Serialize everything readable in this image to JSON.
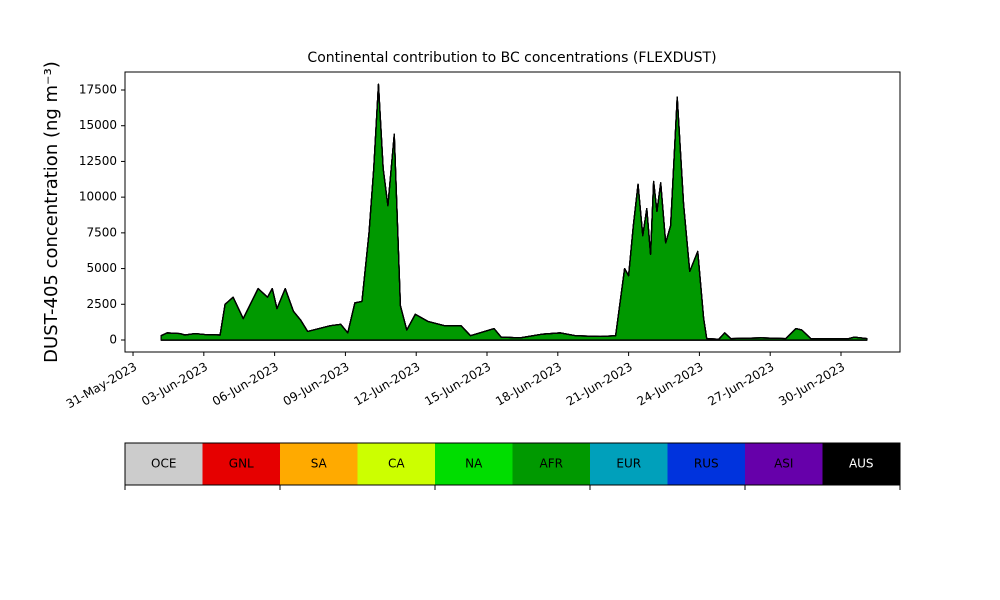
{
  "chart_data": {
    "type": "stackedarea",
    "title": "Continental contribution to BC concentrations (FLEXDUST)",
    "y_label": "DUST-405 concentration (ng m⁻³)",
    "x": [
      1.19,
      1.44,
      1.99,
      2.2,
      2.63,
      3.05,
      3.69,
      3.9,
      4.24,
      4.67,
      5.3,
      5.7,
      5.9,
      6.1,
      6.45,
      6.8,
      7.1,
      7.4,
      8.36,
      8.8,
      9.1,
      9.4,
      9.7,
      10.0,
      10.2,
      10.4,
      10.6,
      10.8,
      11.07,
      11.33,
      11.6,
      11.96,
      12.5,
      13.2,
      13.9,
      14.3,
      15.3,
      15.6,
      16.4,
      17.3,
      18.1,
      18.75,
      19.8,
      20.45,
      20.83,
      21.0,
      21.2,
      21.4,
      21.6,
      21.77,
      21.93,
      22.06,
      22.2,
      22.36,
      22.57,
      22.78,
      23.06,
      23.33,
      23.59,
      23.93,
      24.18,
      24.31,
      24.82,
      25.07,
      25.33,
      26.6,
      27.66,
      28.09,
      28.34,
      28.72,
      30.33,
      30.55,
      31.1
    ],
    "series": [
      {
        "name": "OCE",
        "color": "#cccccc",
        "values": [
          0,
          0,
          0,
          0,
          0,
          0,
          0,
          0,
          0,
          0,
          0,
          0,
          0,
          0,
          0,
          0,
          0,
          0,
          0,
          0,
          0,
          0,
          0,
          0,
          0,
          0,
          0,
          0,
          0,
          0,
          0,
          0,
          0,
          0,
          0,
          0,
          0,
          0,
          0,
          0,
          0,
          0,
          0,
          0,
          0,
          0,
          0,
          0,
          0,
          0,
          0,
          0,
          0,
          0,
          0,
          0,
          0,
          0,
          0,
          0,
          0,
          0,
          0,
          0,
          0,
          0,
          0,
          0,
          0,
          0,
          0,
          0,
          0
        ]
      },
      {
        "name": "GNL",
        "color": "#e60000",
        "values": [
          0,
          0,
          0,
          0,
          0,
          0,
          0,
          0,
          0,
          0,
          0,
          0,
          0,
          0,
          0,
          0,
          0,
          0,
          0,
          0,
          0,
          0,
          0,
          0,
          0,
          0,
          0,
          0,
          0,
          0,
          0,
          0,
          0,
          0,
          0,
          0,
          0,
          0,
          0,
          0,
          0,
          0,
          0,
          0,
          0,
          0,
          0,
          0,
          0,
          0,
          0,
          0,
          0,
          0,
          0,
          0,
          0,
          0,
          0,
          0,
          0,
          0,
          0,
          0,
          0,
          0,
          0,
          0,
          0,
          0,
          0,
          0,
          0
        ]
      },
      {
        "name": "SA",
        "color": "#ffaa00",
        "values": [
          0,
          0,
          0,
          0,
          0,
          0,
          0,
          0,
          0,
          0,
          0,
          0,
          0,
          0,
          0,
          0,
          0,
          0,
          0,
          0,
          0,
          0,
          0,
          0,
          0,
          0,
          0,
          0,
          0,
          0,
          0,
          0,
          0,
          0,
          0,
          0,
          0,
          0,
          0,
          0,
          0,
          0,
          0,
          0,
          0,
          0,
          0,
          0,
          0,
          0,
          0,
          0,
          0,
          0,
          0,
          0,
          0,
          0,
          0,
          0,
          0,
          0,
          0,
          0,
          0,
          0,
          0,
          0,
          0,
          0,
          0,
          0,
          0
        ]
      },
      {
        "name": "CA",
        "color": "#ccff00",
        "values": [
          0,
          0,
          0,
          0,
          0,
          0,
          0,
          0,
          0,
          0,
          0,
          0,
          0,
          0,
          0,
          0,
          0,
          0,
          0,
          0,
          0,
          0,
          0,
          0,
          0,
          0,
          0,
          0,
          0,
          0,
          0,
          0,
          0,
          0,
          0,
          0,
          0,
          0,
          0,
          0,
          0,
          0,
          0,
          0,
          0,
          0,
          0,
          0,
          0,
          0,
          0,
          0,
          0,
          0,
          0,
          0,
          0,
          0,
          0,
          0,
          0,
          0,
          0,
          0,
          0,
          0,
          0,
          0,
          0,
          0,
          0,
          0,
          0
        ]
      },
      {
        "name": "NA",
        "color": "#00dd00",
        "values": [
          0,
          0,
          0,
          0,
          0,
          0,
          0,
          0,
          0,
          0,
          0,
          0,
          0,
          0,
          0,
          0,
          0,
          0,
          0,
          0,
          0,
          0,
          0,
          0,
          0,
          0,
          0,
          0,
          0,
          0,
          0,
          0,
          0,
          0,
          0,
          0,
          0,
          0,
          0,
          0,
          0,
          0,
          0,
          0,
          0,
          0,
          0,
          0,
          0,
          0,
          0,
          0,
          0,
          0,
          0,
          0,
          0,
          0,
          0,
          0,
          0,
          0,
          0,
          0,
          0,
          0,
          0,
          0,
          0,
          0,
          0,
          0,
          0
        ]
      },
      {
        "name": "AFR",
        "color": "#009900",
        "values": [
          300,
          500,
          450,
          350,
          450,
          380,
          350,
          2500,
          3000,
          1500,
          3600,
          3000,
          3600,
          2200,
          3600,
          2000,
          1400,
          600,
          1000,
          1100,
          500,
          2600,
          2700,
          7500,
          12000,
          17900,
          12000,
          9400,
          14400,
          2400,
          700,
          1800,
          1300,
          1000,
          1000,
          300,
          800,
          200,
          150,
          400,
          500,
          300,
          250,
          300,
          5000,
          4500,
          8000,
          10900,
          7300,
          9200,
          6000,
          11100,
          9000,
          11000,
          6800,
          8000,
          17000,
          9500,
          4800,
          6200,
          1500,
          100,
          50,
          500,
          100,
          150,
          100,
          800,
          700,
          100,
          100,
          200,
          100
        ]
      },
      {
        "name": "EUR",
        "color": "#00a0bb",
        "values": [
          0,
          0,
          0,
          0,
          0,
          0,
          0,
          0,
          0,
          0,
          0,
          0,
          0,
          0,
          0,
          0,
          0,
          0,
          0,
          0,
          0,
          0,
          0,
          0,
          0,
          0,
          0,
          0,
          0,
          0,
          0,
          0,
          0,
          0,
          0,
          0,
          0,
          0,
          0,
          0,
          0,
          0,
          0,
          0,
          0,
          0,
          0,
          0,
          0,
          0,
          0,
          0,
          0,
          0,
          0,
          0,
          0,
          0,
          0,
          0,
          0,
          0,
          0,
          0,
          0,
          0,
          0,
          0,
          0,
          0,
          0,
          0,
          0
        ]
      },
      {
        "name": "RUS",
        "color": "#0033dd",
        "values": [
          0,
          0,
          0,
          0,
          0,
          0,
          0,
          0,
          0,
          0,
          0,
          0,
          0,
          0,
          0,
          0,
          0,
          0,
          0,
          0,
          0,
          0,
          0,
          0,
          0,
          0,
          0,
          0,
          0,
          0,
          0,
          0,
          0,
          0,
          0,
          0,
          0,
          0,
          0,
          0,
          0,
          0,
          0,
          0,
          0,
          0,
          0,
          0,
          0,
          0,
          0,
          0,
          0,
          0,
          0,
          0,
          0,
          0,
          0,
          0,
          0,
          0,
          0,
          0,
          0,
          0,
          0,
          0,
          0,
          0,
          0,
          0,
          0
        ]
      },
      {
        "name": "ASI",
        "color": "#6600aa",
        "values": [
          0,
          0,
          0,
          0,
          0,
          0,
          0,
          0,
          0,
          0,
          0,
          0,
          0,
          0,
          0,
          0,
          0,
          0,
          0,
          0,
          0,
          0,
          0,
          0,
          0,
          0,
          0,
          0,
          0,
          0,
          0,
          0,
          0,
          0,
          0,
          0,
          0,
          0,
          0,
          0,
          0,
          0,
          0,
          0,
          0,
          0,
          0,
          0,
          0,
          0,
          0,
          0,
          0,
          0,
          0,
          0,
          0,
          0,
          0,
          0,
          0,
          0,
          0,
          0,
          0,
          0,
          0,
          0,
          0,
          0,
          0,
          0,
          0
        ]
      },
      {
        "name": "AUS",
        "color": "#000000",
        "values": [
          0,
          0,
          0,
          0,
          0,
          0,
          0,
          0,
          0,
          0,
          0,
          0,
          0,
          0,
          0,
          0,
          0,
          0,
          0,
          0,
          0,
          0,
          0,
          0,
          0,
          0,
          0,
          0,
          0,
          0,
          0,
          0,
          0,
          0,
          0,
          0,
          0,
          0,
          0,
          0,
          0,
          0,
          0,
          0,
          0,
          0,
          0,
          0,
          0,
          0,
          0,
          0,
          0,
          0,
          0,
          0,
          0,
          0,
          0,
          0,
          0,
          0,
          0,
          0,
          0,
          0,
          0,
          0,
          0,
          0,
          0,
          0,
          0
        ]
      }
    ],
    "xlim": [
      -0.34,
      32.5
    ],
    "xticks": [
      {
        "value": 0,
        "label": "31-May-2023"
      },
      {
        "value": 3,
        "label": "03-Jun-2023"
      },
      {
        "value": 6,
        "label": "06-Jun-2023"
      },
      {
        "value": 9,
        "label": "09-Jun-2023"
      },
      {
        "value": 12,
        "label": "12-Jun-2023"
      },
      {
        "value": 15,
        "label": "15-Jun-2023"
      },
      {
        "value": 18,
        "label": "18-Jun-2023"
      },
      {
        "value": 21,
        "label": "21-Jun-2023"
      },
      {
        "value": 24,
        "label": "24-Jun-2023"
      },
      {
        "value": 27,
        "label": "27-Jun-2023"
      },
      {
        "value": 30,
        "label": "30-Jun-2023"
      }
    ],
    "ylim": [
      -840,
      18760
    ],
    "yticks": [
      0,
      2500,
      5000,
      7500,
      10000,
      12500,
      15000,
      17500
    ],
    "legend": "colorbar-below"
  }
}
